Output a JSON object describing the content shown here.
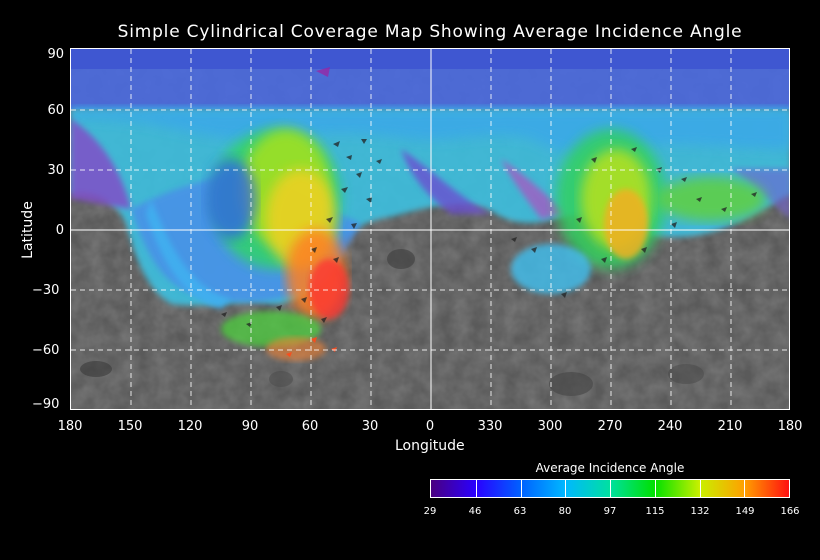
{
  "title": "Simple Cylindrical Coverage Map Showing Average Incidence Angle",
  "axes": {
    "x_title": "Longitude",
    "y_title": "Latitude",
    "x_ticks": [
      "180",
      "150",
      "120",
      "90",
      "60",
      "30",
      "0",
      "330",
      "300",
      "270",
      "240",
      "210",
      "180"
    ],
    "y_ticks": [
      "90",
      "60",
      "30",
      "0",
      "−30",
      "−60",
      "−90"
    ],
    "lat_range": [
      -90,
      90
    ]
  },
  "legend": {
    "title": "Average Incidence Angle",
    "labels": [
      "29",
      "46",
      "63",
      "80",
      "97",
      "115",
      "132",
      "149",
      "166"
    ],
    "colors": [
      "#4a0080",
      "#2a00ff",
      "#0060ff",
      "#00b8ff",
      "#00e0a0",
      "#00e000",
      "#c8f000",
      "#ffa000",
      "#ff1010"
    ]
  },
  "colors": {
    "background": "#000000",
    "grid": "#ffffff",
    "basemap": "#555555"
  }
}
